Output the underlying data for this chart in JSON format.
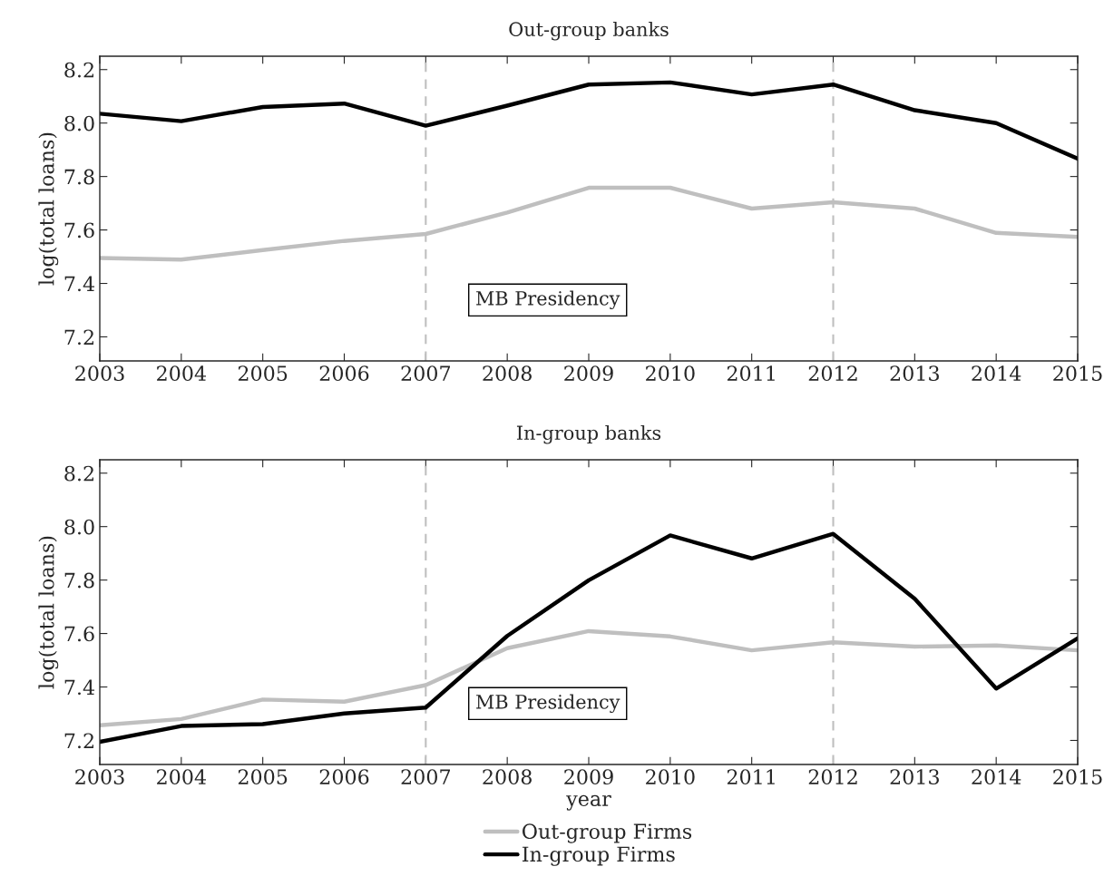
{
  "chart_data": [
    {
      "type": "line",
      "title": "Out-group banks",
      "ylabel": "log(total loans)",
      "x": [
        2003,
        2004,
        2005,
        2006,
        2007,
        2008,
        2009,
        2010,
        2011,
        2012,
        2013,
        2014,
        2015
      ],
      "series": [
        {
          "color": "#bfbfbf",
          "values": [
            7.495,
            7.489,
            7.525,
            7.559,
            7.585,
            7.665,
            7.758,
            7.758,
            7.68,
            7.704,
            7.68,
            7.589,
            7.574
          ]
        },
        {
          "color": "#000000",
          "values": [
            8.035,
            8.007,
            8.06,
            8.073,
            7.99,
            8.065,
            8.144,
            8.152,
            8.107,
            8.144,
            8.048,
            8.0,
            7.867
          ]
        }
      ],
      "xlim": [
        2003,
        2015
      ],
      "xticks": [
        2003,
        2004,
        2005,
        2006,
        2007,
        2008,
        2009,
        2010,
        2011,
        2012,
        2013,
        2014,
        2015
      ],
      "ylim": [
        7.11,
        8.25
      ],
      "yticks": [
        {
          "value": 7.2,
          "label": "7.2"
        },
        {
          "value": 7.4,
          "label": "7.4"
        },
        {
          "value": 7.6,
          "label": "7.6"
        },
        {
          "value": 7.8,
          "label": "7.8"
        },
        {
          "value": 8.0,
          "label": "8.0"
        },
        {
          "value": 8.2,
          "label": "8.2"
        }
      ],
      "ref_lines": [
        {
          "axis": "x",
          "value": 2007,
          "color": "#bfbfbf",
          "line_style": "dashed"
        },
        {
          "axis": "x",
          "value": 2012,
          "color": "#bfbfbf",
          "line_style": "dashed"
        }
      ],
      "annotations": [
        "MB Presidency"
      ],
      "line_style": "solid",
      "grid": false
    },
    {
      "type": "line",
      "title": "In-group banks",
      "xlabel": "year",
      "ylabel": "log(total loans)",
      "x": [
        2003,
        2004,
        2005,
        2006,
        2007,
        2008,
        2009,
        2010,
        2011,
        2012,
        2013,
        2014,
        2015
      ],
      "series": [
        {
          "name": "Out-group Firms",
          "color": "#bfbfbf",
          "values": [
            7.257,
            7.28,
            7.353,
            7.345,
            7.407,
            7.545,
            7.609,
            7.589,
            7.537,
            7.567,
            7.551,
            7.555,
            7.537
          ]
        },
        {
          "name": "In-group Firms",
          "color": "#000000",
          "values": [
            7.195,
            7.254,
            7.261,
            7.301,
            7.323,
            7.591,
            7.799,
            7.967,
            7.881,
            7.973,
            7.73,
            7.394,
            7.582
          ]
        }
      ],
      "xlim": [
        2003,
        2015
      ],
      "xticks": [
        2003,
        2004,
        2005,
        2006,
        2007,
        2008,
        2009,
        2010,
        2011,
        2012,
        2013,
        2014,
        2015
      ],
      "ylim": [
        7.11,
        8.25
      ],
      "yticks": [
        {
          "value": 7.2,
          "label": "7.2"
        },
        {
          "value": 7.4,
          "label": "7.4"
        },
        {
          "value": 7.6,
          "label": "7.6"
        },
        {
          "value": 7.8,
          "label": "7.8"
        },
        {
          "value": 8.0,
          "label": "8.0"
        },
        {
          "value": 8.2,
          "label": "8.2"
        }
      ],
      "ref_lines": [
        {
          "axis": "x",
          "value": 2007,
          "color": "#bfbfbf",
          "line_style": "dashed"
        },
        {
          "axis": "x",
          "value": 2012,
          "color": "#bfbfbf",
          "line_style": "dashed"
        }
      ],
      "annotations": [
        "MB Presidency"
      ],
      "line_style": "solid",
      "grid": false,
      "legend": "bottom"
    }
  ]
}
